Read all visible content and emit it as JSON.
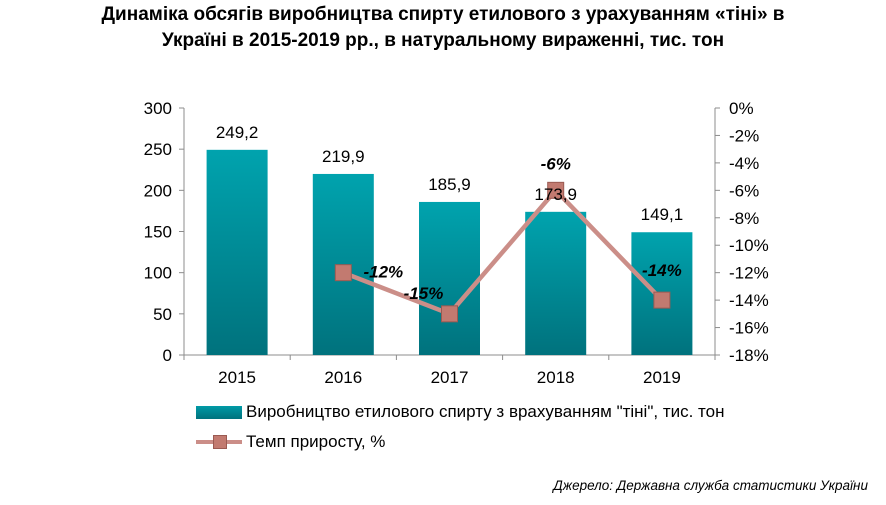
{
  "title": "Динаміка  обсягів  виробництва  спирту  етилового  з урахуванням  «тіні»  в\nУкраїні  в 2015-2019 рр., в натуральному  вираженні,  тис. тон",
  "source": "Джерело: Державна служба статистики України",
  "colors": {
    "bar": "#00929e",
    "bar_dark": "#00727d",
    "line": "#cb8e88",
    "marker": "#c27a70"
  },
  "chart_data": {
    "type": "bar",
    "categories": [
      "2015",
      "2016",
      "2017",
      "2018",
      "2019"
    ],
    "ylim": [
      0,
      300
    ],
    "y_ticks": [
      "300",
      "250",
      "200",
      "150",
      "100",
      "50",
      "0"
    ],
    "y2lim": [
      -18,
      0
    ],
    "y2_ticks": [
      "0%",
      "-2%",
      "-4%",
      "-6%",
      "-8%",
      "-10%",
      "-12%",
      "-14%",
      "-16%",
      "-18%"
    ],
    "grid": false,
    "legend_position": "bottom",
    "series": [
      {
        "name": "Виробництво етилового спирту з врахуванням \"тіні\", тис. тон",
        "type": "bar",
        "axis": "left",
        "values": [
          249.2,
          219.9,
          185.9,
          173.9,
          149.1
        ],
        "labels": [
          "249,2",
          "219,9",
          "185,9",
          "173,9",
          "149,1"
        ]
      },
      {
        "name": "Темп приросту, %",
        "type": "line",
        "axis": "right",
        "values": [
          null,
          -12,
          -15,
          -6,
          -14
        ],
        "labels": [
          "",
          "-12%",
          "-15%",
          "-6%",
          "-14%"
        ]
      }
    ]
  }
}
